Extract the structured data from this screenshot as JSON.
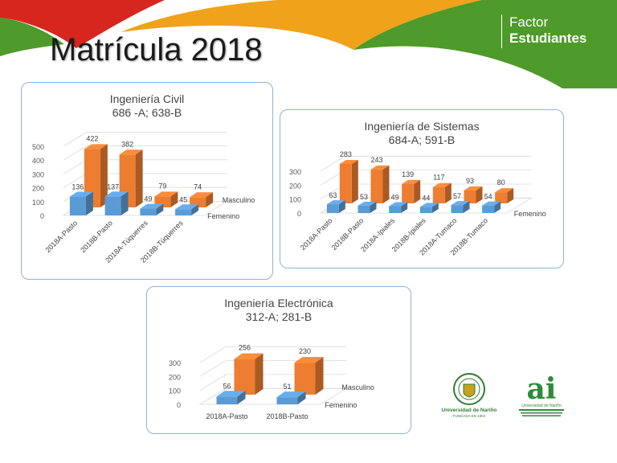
{
  "slide": {
    "title": "Matrícula 2018",
    "brand_line1": "Factor",
    "brand_line2": "Estudiantes"
  },
  "logos": {
    "udn_text": "Universidad de Nariño",
    "udn_sub": "FUNDADA EN 1904",
    "ai_mark": "ai",
    "ai_sub": "Universidad de Nariño"
  },
  "colors": {
    "femenino": "#5b9bd5",
    "masculino": "#ed7d31",
    "banner_red": "#d7261e",
    "banner_orange": "#f0a21b",
    "banner_green": "#4e9a2a",
    "panel_border": "#8fb3d9"
  },
  "chart_data": [
    {
      "type": "bar",
      "title": "Ingeniería Civil",
      "subtitle": "686 -A;   638-B",
      "categories": [
        "2018A-Pasto",
        "2018B-Pasto",
        "2018A-Túquerres",
        "2018B-Túquerres"
      ],
      "series": [
        {
          "name": "Femenino",
          "values": [
            136,
            137,
            49,
            45
          ]
        },
        {
          "name": "Masculino",
          "values": [
            422,
            382,
            79,
            74
          ]
        }
      ],
      "ylim": [
        0,
        500
      ],
      "yticks": [
        0,
        100,
        200,
        300,
        400,
        500
      ],
      "grid": true,
      "legend": "right-depth"
    },
    {
      "type": "bar",
      "title": "Ingeniería de Sistemas",
      "subtitle": "684-A;     591-B",
      "categories": [
        "2018A-Pasto",
        "2018B-Pasto",
        "2018A-Ipiales",
        "2018B-Ipiales",
        "2018A-Tumaco",
        "2018B-Tumaco"
      ],
      "series": [
        {
          "name": "Femenino",
          "values": [
            63,
            53,
            49,
            44,
            57,
            54
          ]
        },
        {
          "name": "",
          "values": [
            283,
            243,
            139,
            117,
            93,
            80
          ]
        }
      ],
      "ylim": [
        0,
        300
      ],
      "yticks": [
        0,
        100,
        200,
        300
      ],
      "grid": true,
      "legend": "right-depth"
    },
    {
      "type": "bar",
      "title": "Ingeniería Electrónica",
      "subtitle": "312-A;    281-B",
      "categories": [
        "2018A-Pasto",
        "2018B-Pasto"
      ],
      "series": [
        {
          "name": "Femenino",
          "values": [
            56,
            51
          ]
        },
        {
          "name": "Masculino",
          "values": [
            256,
            230
          ]
        }
      ],
      "ylim": [
        0,
        300
      ],
      "yticks": [
        0,
        100,
        200,
        300
      ],
      "grid": true,
      "legend": "right-depth"
    }
  ]
}
